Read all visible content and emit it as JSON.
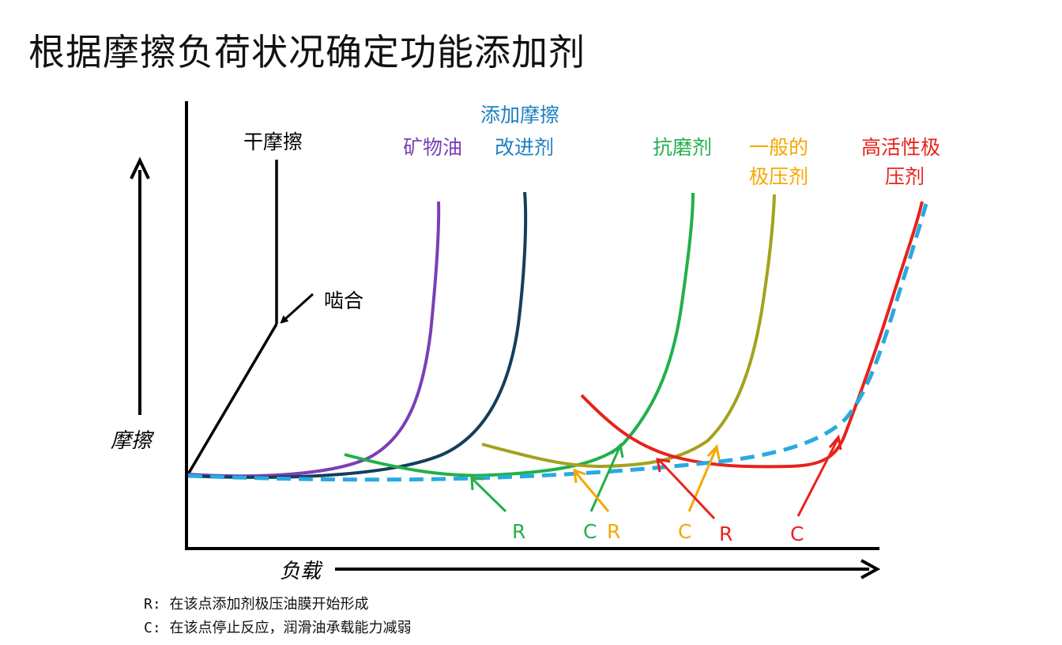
{
  "title": "根据摩擦负荷状况确定功能添加剂",
  "axes": {
    "y_label": "摩擦",
    "x_label": "负载"
  },
  "annotations": {
    "dry_friction": "干摩擦",
    "seizure": "啮合"
  },
  "curves": [
    {
      "key": "mineral_oil",
      "label_lines": [
        "矿物油"
      ],
      "color": "#7B3FB5"
    },
    {
      "key": "friction_modifier",
      "label_lines": [
        "添加摩擦",
        "改进剂"
      ],
      "color": "#1F7FC1"
    },
    {
      "key": "antiwear",
      "label_lines": [
        "抗磨剂"
      ],
      "color": "#22B04B"
    },
    {
      "key": "general_ep",
      "label_lines": [
        "一般的",
        "极压剂"
      ],
      "color": "#F5A800"
    },
    {
      "key": "high_active_ep",
      "label_lines": [
        "高活性极",
        "压剂"
      ],
      "color": "#E8221C"
    }
  ],
  "point_labels": {
    "green_r": "R",
    "green_c": "C",
    "yellow_r": "R",
    "yellow_c": "C",
    "red_r": "R",
    "red_c": "C"
  },
  "colors": {
    "mineral_oil": "#7B3FB5",
    "friction_modifier_curve": "#143E5C",
    "friction_modifier_label": "#1F7FC1",
    "antiwear": "#22B04B",
    "general_ep_curve": "#A3A21C",
    "general_ep_label": "#F5A800",
    "high_active_ep": "#E8221C",
    "envelope_dashed": "#29AAE1"
  },
  "legend_notes": [
    "R: 在该点添加剂极压油膜开始形成",
    "C: 在该点停止反应，润滑油承载能力减弱"
  ]
}
